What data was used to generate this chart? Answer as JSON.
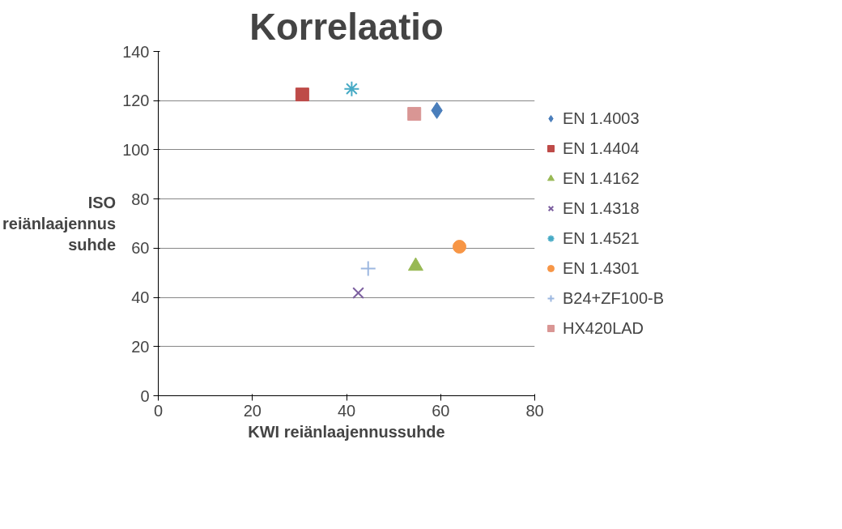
{
  "chart_data": {
    "type": "scatter",
    "title": "Korrelaatio",
    "xlabel": "KWI reiänlaajennussuhde",
    "ylabel": "ISO\nreiänlaajennus\nsuhde",
    "xlim": [
      0,
      80
    ],
    "xticks": [
      0,
      20,
      40,
      60,
      80
    ],
    "ylim": [
      0,
      140
    ],
    "yticks": [
      0,
      20,
      40,
      60,
      80,
      100,
      120,
      140
    ],
    "grid": "y",
    "legend": "right",
    "series": [
      {
        "name": "EN 1.4003",
        "color": "#4a7ebb",
        "marker": "diamond",
        "x": [
          59.2
        ],
        "values": [
          116
        ]
      },
      {
        "name": "EN 1.4404",
        "color": "#be4b48",
        "marker": "square",
        "x": [
          30.6
        ],
        "values": [
          122.5
        ]
      },
      {
        "name": "EN 1.4162",
        "color": "#98b954",
        "marker": "triangle",
        "x": [
          54.7
        ],
        "values": [
          52.7
        ]
      },
      {
        "name": "EN 1.4318",
        "color": "#7d60a0",
        "marker": "x",
        "x": [
          42.5
        ],
        "values": [
          41.8
        ]
      },
      {
        "name": "EN 1.4521",
        "color": "#46aac5",
        "x": [
          41.1
        ],
        "values": [
          124.8
        ]
      },
      {
        "name": "EN 1.4301",
        "color": "#f79646",
        "marker": "circle",
        "x": [
          64
        ],
        "values": [
          60.6
        ]
      },
      {
        "name": "B24+ZF100-B",
        "color": "#9cb7e0",
        "marker": "cross",
        "x": [
          44.6
        ],
        "values": [
          51.7
        ]
      },
      {
        "name": "HX420LAD",
        "color": "#d99694",
        "marker": "square",
        "x": [
          54.4
        ],
        "values": [
          114.6
        ]
      }
    ]
  }
}
